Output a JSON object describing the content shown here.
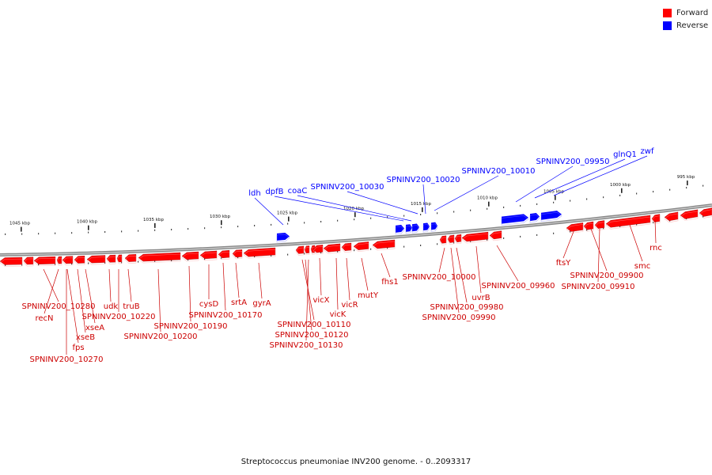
{
  "legend": {
    "forward_label": "Forward",
    "reverse_label": "Reverse",
    "forward_color": "#ff0000",
    "reverse_color": "#0000ff"
  },
  "caption": "Streptococcus pneumoniae INV200 genome. - 0..2093317",
  "backbone": {
    "color": "#888888",
    "ticks": [
      "995 kbp",
      "1000 kbp",
      "1005 kbp",
      "1010 kbp",
      "1015 kbp",
      "1020 kbp",
      "1025 kbp",
      "1030 kbp",
      "1035 kbp",
      "1040 kbp",
      "1045 kbp"
    ]
  },
  "genes": {
    "reverse": [
      "ldh",
      "dpfB",
      "coaC",
      "SPNINV200_10030",
      "SPNINV200_10020",
      "SPNINV200_10010",
      "SPNINV200_09950",
      "glnQ1",
      "zwf"
    ],
    "forward": [
      "SPNINV200_10280",
      "recN",
      "fps",
      "xseB",
      "xseA",
      "SPNINV200_10270",
      "udk",
      "truB",
      "SPNINV200_10220",
      "SPNINV200_10200",
      "SPNINV200_10190",
      "cysD",
      "SPNINV200_10170",
      "srtA",
      "gyrA",
      "vicX",
      "SPNINV200_10110",
      "SPNINV200_10120",
      "SPNINV200_10130",
      "vicK",
      "vicR",
      "mutY",
      "fhs1",
      "SPNINV200_10000",
      "uvrB",
      "SPNINV200_09980",
      "SPNINV200_09990",
      "SPNINV200_09960",
      "ftsY",
      "SPNINV200_09900",
      "SPNINV200_09910",
      "smc",
      "rnc"
    ]
  }
}
